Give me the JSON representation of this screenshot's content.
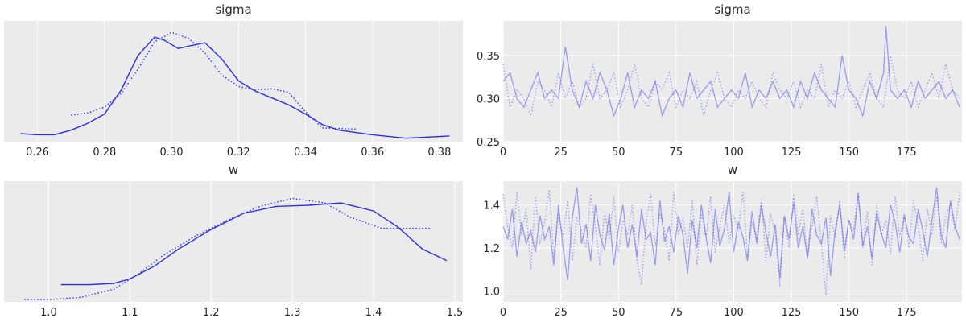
{
  "chart_data": [
    {
      "id": "sigma-kde",
      "type": "line",
      "title": "sigma",
      "xlim": [
        0.25,
        0.387
      ],
      "xticks": [
        0.26,
        0.28,
        0.3,
        0.32,
        0.34,
        0.36,
        0.38
      ],
      "xtick_labels": [
        "0.26",
        "0.28",
        "0.30",
        "0.32",
        "0.34",
        "0.36",
        "0.38"
      ],
      "yticks": [],
      "ylim": [
        0,
        1.05
      ],
      "grid": true,
      "series": [
        {
          "style": "solid",
          "x": [
            0.255,
            0.26,
            0.265,
            0.27,
            0.275,
            0.28,
            0.285,
            0.29,
            0.295,
            0.298,
            0.302,
            0.305,
            0.31,
            0.315,
            0.32,
            0.325,
            0.33,
            0.335,
            0.34,
            0.345,
            0.35,
            0.36,
            0.37,
            0.383
          ],
          "y": [
            0.07,
            0.06,
            0.06,
            0.1,
            0.16,
            0.24,
            0.45,
            0.75,
            0.91,
            0.88,
            0.81,
            0.83,
            0.86,
            0.72,
            0.53,
            0.44,
            0.38,
            0.32,
            0.24,
            0.15,
            0.1,
            0.06,
            0.03,
            0.05
          ]
        },
        {
          "style": "dotted",
          "x": [
            0.27,
            0.275,
            0.28,
            0.285,
            0.29,
            0.295,
            0.3,
            0.305,
            0.31,
            0.315,
            0.32,
            0.325,
            0.33,
            0.335,
            0.34,
            0.345,
            0.355
          ],
          "y": [
            0.23,
            0.25,
            0.3,
            0.42,
            0.63,
            0.87,
            0.95,
            0.9,
            0.77,
            0.58,
            0.48,
            0.45,
            0.46,
            0.43,
            0.26,
            0.12,
            0.11
          ]
        }
      ]
    },
    {
      "id": "sigma-trace",
      "type": "line",
      "title": "sigma",
      "xlim": [
        0,
        199
      ],
      "ylim": [
        0.25,
        0.39
      ],
      "xticks": [
        0,
        25,
        50,
        75,
        100,
        125,
        150,
        175
      ],
      "xtick_labels": [
        "0",
        "25",
        "50",
        "75",
        "100",
        "125",
        "150",
        "175"
      ],
      "yticks": [
        0.25,
        0.3,
        0.35
      ],
      "ytick_labels": [
        "0.25",
        "0.30",
        "0.35"
      ],
      "grid": true,
      "series": [
        {
          "style": "solid",
          "x": [
            0,
            3,
            6,
            9,
            12,
            15,
            18,
            21,
            24,
            27,
            30,
            33,
            36,
            39,
            42,
            45,
            48,
            51,
            54,
            57,
            60,
            63,
            66,
            69,
            72,
            75,
            78,
            81,
            84,
            87,
            90,
            93,
            96,
            99,
            102,
            105,
            108,
            111,
            114,
            117,
            120,
            123,
            126,
            129,
            132,
            135,
            138,
            141,
            144,
            147,
            150,
            153,
            156,
            159,
            162,
            165,
            166,
            168,
            171,
            174,
            177,
            180,
            183,
            186,
            189,
            192,
            195,
            198
          ],
          "y": [
            0.32,
            0.33,
            0.3,
            0.29,
            0.31,
            0.33,
            0.3,
            0.31,
            0.3,
            0.36,
            0.31,
            0.29,
            0.32,
            0.3,
            0.33,
            0.31,
            0.28,
            0.3,
            0.33,
            0.29,
            0.31,
            0.3,
            0.32,
            0.28,
            0.3,
            0.31,
            0.29,
            0.33,
            0.3,
            0.31,
            0.32,
            0.29,
            0.3,
            0.31,
            0.3,
            0.33,
            0.29,
            0.31,
            0.3,
            0.32,
            0.3,
            0.31,
            0.29,
            0.32,
            0.3,
            0.33,
            0.31,
            0.3,
            0.29,
            0.35,
            0.31,
            0.3,
            0.28,
            0.32,
            0.3,
            0.33,
            0.384,
            0.31,
            0.3,
            0.31,
            0.29,
            0.32,
            0.3,
            0.31,
            0.32,
            0.3,
            0.31,
            0.29
          ]
        },
        {
          "style": "dotted",
          "x": [
            0,
            3,
            6,
            9,
            12,
            15,
            18,
            21,
            24,
            27,
            30,
            33,
            36,
            39,
            42,
            45,
            48,
            51,
            54,
            57,
            60,
            63,
            66,
            69,
            72,
            75,
            78,
            81,
            84,
            87,
            90,
            93,
            96,
            99,
            102,
            105,
            108,
            111,
            114,
            117,
            120,
            123,
            126,
            129,
            132,
            135,
            138,
            141,
            144,
            147,
            150,
            153,
            156,
            159,
            162,
            165,
            168,
            171,
            174,
            177,
            180,
            183,
            186,
            189,
            192,
            195,
            198
          ],
          "y": [
            0.34,
            0.29,
            0.31,
            0.3,
            0.28,
            0.32,
            0.31,
            0.29,
            0.33,
            0.3,
            0.32,
            0.29,
            0.3,
            0.34,
            0.3,
            0.31,
            0.33,
            0.29,
            0.31,
            0.34,
            0.3,
            0.29,
            0.32,
            0.31,
            0.33,
            0.29,
            0.31,
            0.3,
            0.32,
            0.28,
            0.31,
            0.33,
            0.3,
            0.29,
            0.31,
            0.3,
            0.32,
            0.3,
            0.29,
            0.33,
            0.31,
            0.3,
            0.32,
            0.29,
            0.31,
            0.3,
            0.34,
            0.29,
            0.31,
            0.3,
            0.32,
            0.29,
            0.31,
            0.33,
            0.3,
            0.29,
            0.35,
            0.31,
            0.3,
            0.32,
            0.29,
            0.31,
            0.33,
            0.3,
            0.34,
            0.31,
            0.3
          ]
        }
      ]
    },
    {
      "id": "w-kde",
      "type": "line",
      "title": "w",
      "xlim": [
        0.945,
        1.51
      ],
      "xticks": [
        1.0,
        1.1,
        1.2,
        1.3,
        1.4,
        1.5
      ],
      "xtick_labels": [
        "1.0",
        "1.1",
        "1.2",
        "1.3",
        "1.4",
        "1.5"
      ],
      "yticks": [],
      "ylim": [
        0,
        1.05
      ],
      "grid": true,
      "series": [
        {
          "style": "solid",
          "x": [
            1.015,
            1.05,
            1.08,
            1.1,
            1.13,
            1.16,
            1.2,
            1.24,
            1.28,
            1.32,
            1.36,
            1.4,
            1.43,
            1.46,
            1.49
          ],
          "y": [
            0.15,
            0.15,
            0.16,
            0.2,
            0.31,
            0.46,
            0.63,
            0.77,
            0.83,
            0.84,
            0.86,
            0.79,
            0.65,
            0.46,
            0.36
          ]
        },
        {
          "style": "dotted",
          "x": [
            0.97,
            1.0,
            1.04,
            1.08,
            1.11,
            1.14,
            1.18,
            1.22,
            1.26,
            1.3,
            1.34,
            1.37,
            1.41,
            1.45,
            1.47
          ],
          "y": [
            0.02,
            0.02,
            0.04,
            0.11,
            0.24,
            0.4,
            0.57,
            0.71,
            0.83,
            0.9,
            0.86,
            0.74,
            0.64,
            0.64,
            0.64
          ]
        }
      ]
    },
    {
      "id": "w-trace",
      "type": "line",
      "title": "w",
      "xlim": [
        0,
        199
      ],
      "ylim": [
        0.95,
        1.51
      ],
      "xticks": [
        0,
        25,
        50,
        75,
        100,
        125,
        150,
        175
      ],
      "xtick_labels": [
        "0",
        "25",
        "50",
        "75",
        "100",
        "125",
        "150",
        "175"
      ],
      "yticks": [
        1.0,
        1.2,
        1.4
      ],
      "ytick_labels": [
        "1.0",
        "1.2",
        "1.4"
      ],
      "grid": true,
      "series": [
        {
          "style": "solid",
          "x": [
            0,
            2,
            4,
            6,
            8,
            10,
            12,
            14,
            16,
            18,
            20,
            22,
            24,
            26,
            28,
            30,
            32,
            34,
            36,
            38,
            40,
            42,
            44,
            46,
            48,
            50,
            52,
            54,
            56,
            58,
            60,
            62,
            64,
            66,
            68,
            70,
            72,
            74,
            76,
            78,
            80,
            82,
            84,
            86,
            88,
            90,
            92,
            94,
            96,
            98,
            100,
            102,
            104,
            106,
            108,
            110,
            112,
            114,
            116,
            118,
            120,
            122,
            124,
            126,
            128,
            130,
            132,
            134,
            136,
            138,
            140,
            142,
            144,
            146,
            148,
            150,
            152,
            154,
            156,
            158,
            160,
            162,
            164,
            166,
            168,
            170,
            172,
            174,
            176,
            178,
            180,
            182,
            184,
            186,
            188,
            190,
            192,
            194,
            196,
            198
          ],
          "y": [
            1.3,
            1.24,
            1.38,
            1.16,
            1.32,
            1.22,
            1.28,
            1.18,
            1.35,
            1.24,
            1.3,
            1.12,
            1.4,
            1.2,
            1.05,
            1.34,
            1.48,
            1.22,
            1.31,
            1.14,
            1.4,
            1.26,
            1.19,
            1.36,
            1.12,
            1.29,
            1.4,
            1.2,
            1.31,
            1.16,
            1.38,
            1.24,
            1.27,
            1.12,
            1.42,
            1.23,
            1.3,
            1.18,
            1.35,
            1.26,
            1.08,
            1.33,
            1.2,
            1.4,
            1.25,
            1.13,
            1.38,
            1.21,
            1.29,
            1.46,
            1.18,
            1.32,
            1.25,
            1.14,
            1.37,
            1.22,
            1.4,
            1.27,
            1.16,
            1.31,
            1.06,
            1.35,
            1.24,
            1.41,
            1.2,
            1.3,
            1.15,
            1.38,
            1.26,
            1.22,
            1.34,
            1.07,
            1.28,
            1.4,
            1.19,
            1.33,
            1.24,
            1.45,
            1.21,
            1.3,
            1.15,
            1.36,
            1.27,
            1.2,
            1.4,
            1.32,
            1.18,
            1.35,
            1.25,
            1.22,
            1.38,
            1.28,
            1.16,
            1.33,
            1.48,
            1.26,
            1.2,
            1.42,
            1.3,
            1.24
          ]
        },
        {
          "style": "dotted",
          "x": [
            0,
            2,
            4,
            6,
            8,
            10,
            12,
            14,
            16,
            18,
            20,
            22,
            24,
            26,
            28,
            30,
            32,
            34,
            36,
            38,
            40,
            42,
            44,
            46,
            48,
            50,
            52,
            54,
            56,
            58,
            60,
            62,
            64,
            66,
            68,
            70,
            72,
            74,
            76,
            78,
            80,
            82,
            84,
            86,
            88,
            90,
            92,
            94,
            96,
            98,
            100,
            102,
            104,
            106,
            108,
            110,
            112,
            114,
            116,
            118,
            120,
            122,
            124,
            126,
            128,
            130,
            132,
            134,
            136,
            138,
            140,
            142,
            144,
            146,
            148,
            150,
            152,
            154,
            156,
            158,
            160,
            162,
            164,
            166,
            168,
            170,
            172,
            174,
            176,
            178,
            180,
            182,
            184,
            186,
            188,
            190,
            192,
            194,
            196,
            198
          ],
          "y": [
            1.45,
            1.3,
            1.2,
            1.46,
            1.26,
            1.38,
            1.1,
            1.44,
            1.22,
            1.32,
            1.47,
            1.16,
            1.36,
            1.25,
            1.42,
            1.14,
            1.34,
            1.28,
            1.2,
            1.45,
            1.3,
            1.12,
            1.37,
            1.24,
            1.44,
            1.18,
            1.33,
            1.26,
            1.4,
            1.15,
            1.03,
            1.32,
            1.45,
            1.21,
            1.36,
            1.28,
            1.14,
            1.46,
            1.26,
            1.34,
            1.2,
            1.42,
            1.12,
            1.36,
            1.25,
            1.44,
            1.18,
            1.3,
            1.4,
            1.22,
            1.35,
            1.28,
            1.46,
            1.16,
            1.32,
            1.24,
            1.43,
            1.14,
            1.36,
            1.27,
            1.02,
            1.34,
            1.2,
            1.45,
            1.26,
            1.38,
            1.16,
            1.3,
            1.44,
            1.22,
            0.98,
            1.35,
            1.25,
            1.42,
            1.15,
            1.33,
            1.28,
            1.46,
            1.2,
            1.37,
            1.12,
            1.4,
            1.26,
            1.33,
            1.17,
            1.44,
            1.25,
            1.36,
            1.2,
            1.42,
            1.3,
            1.14,
            1.38,
            1.26,
            1.44,
            1.22,
            1.35,
            1.4,
            1.28,
            1.46
          ]
        }
      ]
    }
  ]
}
